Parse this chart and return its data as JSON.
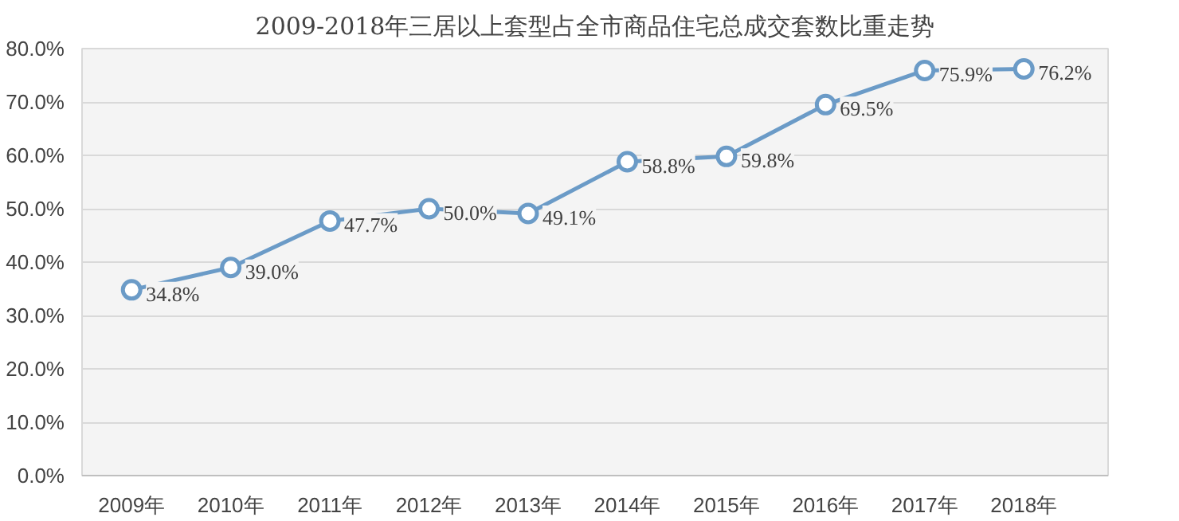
{
  "chart_data": {
    "type": "line",
    "title": "2009-2018年三居以上套型占全市商品住宅总成交套数比重走势",
    "categories": [
      "2009年",
      "2010年",
      "2011年",
      "2012年",
      "2013年",
      "2014年",
      "2015年",
      "2016年",
      "2017年",
      "2018年"
    ],
    "series": [
      {
        "color": "#6b9bc7",
        "values": [
          34.8,
          39.0,
          47.7,
          50.0,
          49.1,
          58.8,
          59.8,
          69.5,
          75.9,
          76.2
        ]
      }
    ],
    "value_labels": [
      "34.8%",
      "39.0%",
      "47.7%",
      "50.0%",
      "49.1%",
      "58.8%",
      "59.8%",
      "69.5%",
      "75.9%",
      "76.2%"
    ],
    "ylim": [
      0,
      80
    ],
    "yticks": [
      {
        "value": 0,
        "label": "0.0%"
      },
      {
        "value": 10,
        "label": "10.0%"
      },
      {
        "value": 20,
        "label": "20.0%"
      },
      {
        "value": 30,
        "label": "30.0%"
      },
      {
        "value": 40,
        "label": "40.0%"
      },
      {
        "value": 50,
        "label": "50.0%"
      },
      {
        "value": 60,
        "label": "60.0%"
      },
      {
        "value": 70,
        "label": "70.0%"
      },
      {
        "value": 80,
        "label": "80.0%"
      }
    ],
    "grid": "y",
    "marker": "circle"
  }
}
